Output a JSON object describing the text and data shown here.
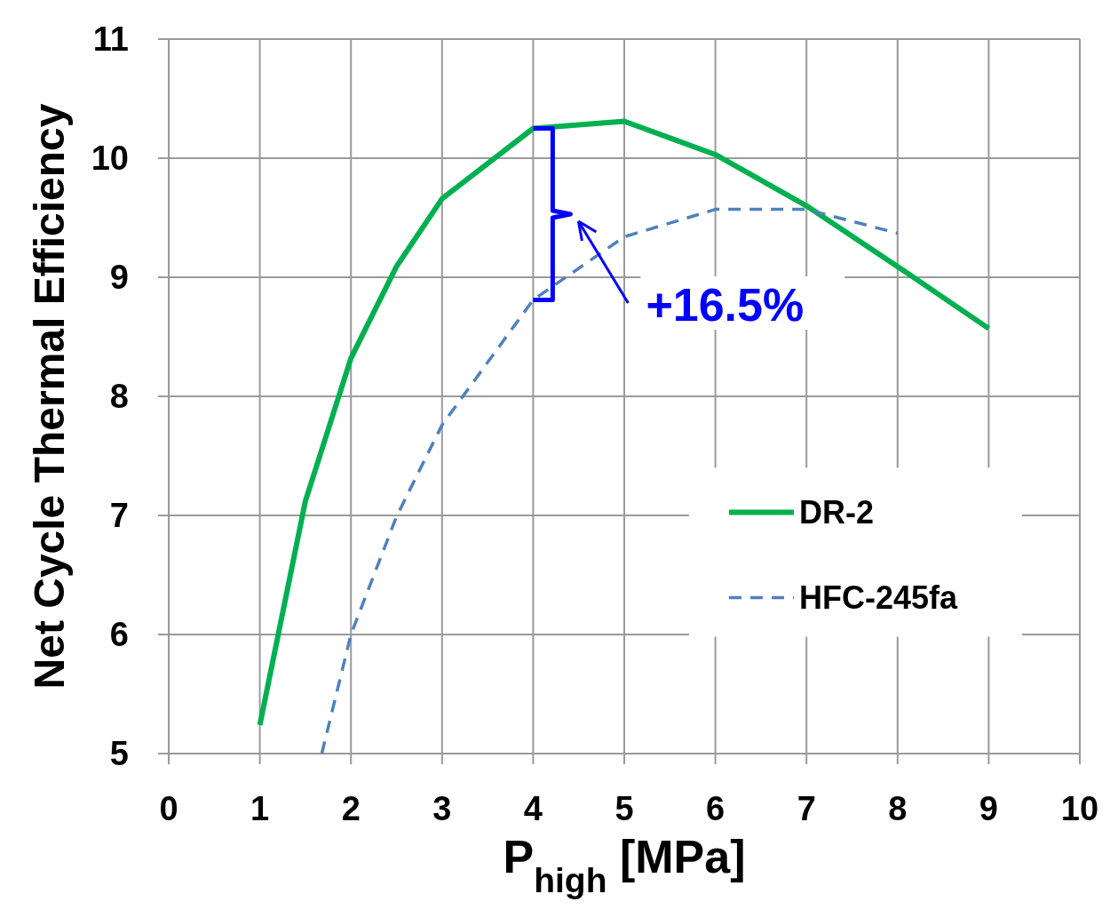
{
  "chart_data": {
    "type": "line",
    "xlabel": "P$_{high}$ [MPa]",
    "ylabel": "Net Cycle Thermal Efficiency",
    "xlim": [
      0,
      10
    ],
    "xticks": [
      0,
      1,
      2,
      3,
      4,
      5,
      6,
      7,
      8,
      9,
      10
    ],
    "ylim": [
      5,
      11
    ],
    "yticks": [
      5,
      6,
      7,
      8,
      9,
      10,
      11
    ],
    "grid": true,
    "legend": "right",
    "marker": "none",
    "series": [
      {
        "name": "DR-2",
        "color": "#00b050",
        "line_style": "solid",
        "x": [
          1,
          1.5,
          2,
          2.5,
          3,
          4,
          5,
          6,
          7,
          8,
          9
        ],
        "values": [
          5.24,
          7.12,
          8.32,
          9.09,
          9.66,
          10.25,
          10.31,
          10.03,
          9.6,
          9.09,
          8.57
        ]
      },
      {
        "name": "HFC-245fa",
        "color": "#4f81bd",
        "line_style": "dashed",
        "x": [
          1.68,
          2,
          2.5,
          3,
          4,
          5,
          6,
          7,
          8
        ],
        "values": [
          5.0,
          6.0,
          6.99,
          7.76,
          8.81,
          9.34,
          9.57,
          9.57,
          9.37
        ]
      }
    ],
    "annotations": [
      "+16.5%"
    ]
  }
}
